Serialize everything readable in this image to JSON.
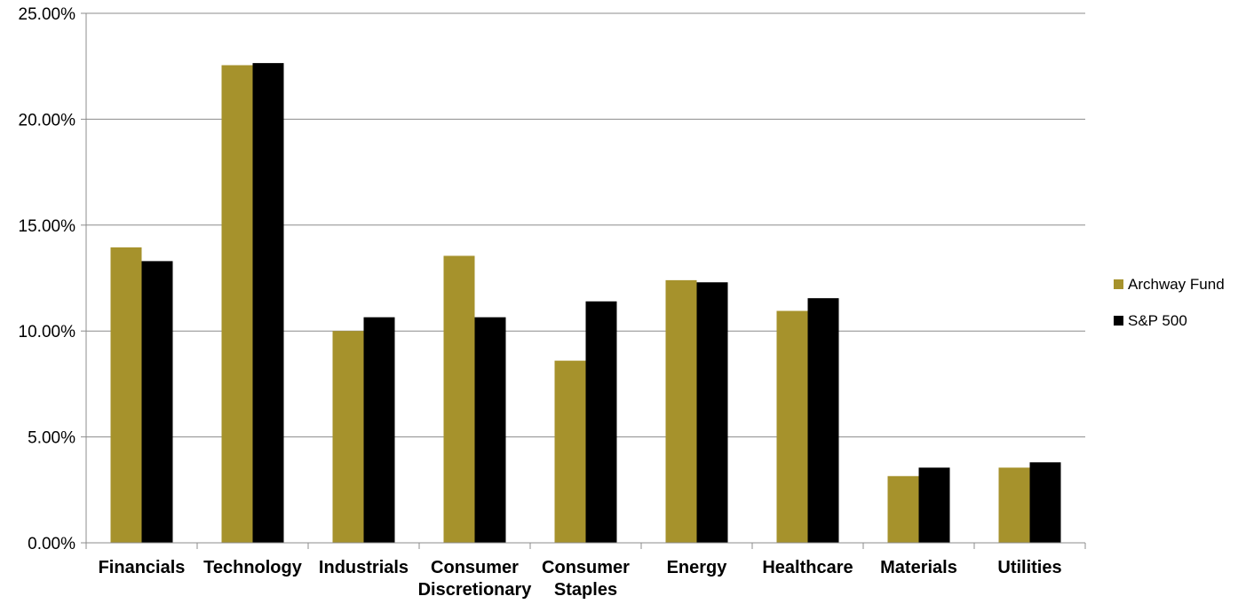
{
  "chart_data": {
    "type": "bar",
    "categories": [
      [
        "Financials"
      ],
      [
        "Technology"
      ],
      [
        "Industrials"
      ],
      [
        "Consumer",
        "Discretionary"
      ],
      [
        "Consumer",
        "Staples"
      ],
      [
        "Energy"
      ],
      [
        "Healthcare"
      ],
      [
        "Materials"
      ],
      [
        "Utilities"
      ]
    ],
    "series": [
      {
        "name": "Archway Fund",
        "color": "#a6922c",
        "values": [
          13.95,
          22.55,
          10.0,
          13.55,
          8.6,
          12.4,
          10.95,
          3.15,
          3.55
        ]
      },
      {
        "name": "S&P 500",
        "color": "#000000",
        "values": [
          13.3,
          22.65,
          10.65,
          10.65,
          11.4,
          12.3,
          11.55,
          3.55,
          3.8
        ]
      }
    ],
    "yticks": [
      "0.00%",
      "5.00%",
      "10.00%",
      "15.00%",
      "20.00%",
      "25.00%"
    ],
    "ylim": [
      0,
      25
    ],
    "grid": true,
    "legend_position": "right"
  }
}
